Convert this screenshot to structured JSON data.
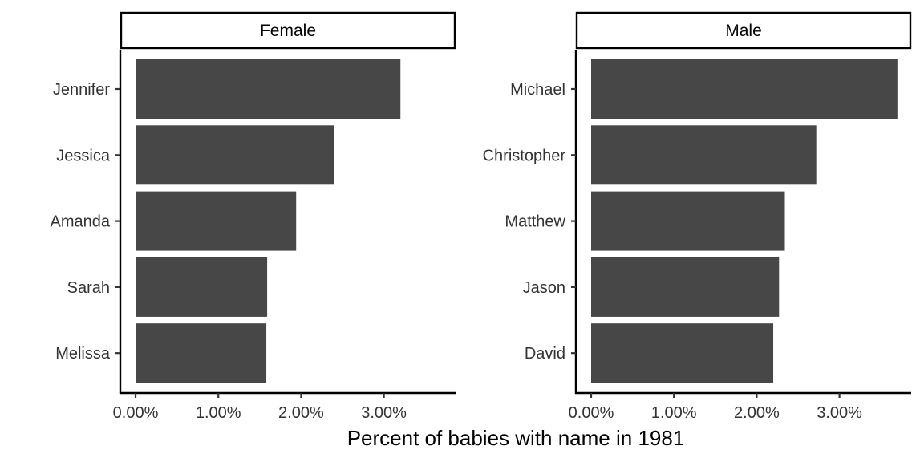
{
  "chart_data": {
    "type": "bar",
    "orientation": "horizontal",
    "xlabel": "Percent of babies with name in 1981",
    "ylabel": "",
    "xlim": [
      0,
      3.85
    ],
    "x_ticks": [
      0,
      1,
      2,
      3
    ],
    "x_tick_labels": [
      "0.00%",
      "1.00%",
      "2.00%",
      "3.00%"
    ],
    "grid": false,
    "bar_color": "#474747",
    "panels": [
      {
        "name": "Female",
        "categories": [
          "Jennifer",
          "Jessica",
          "Amanda",
          "Sarah",
          "Melissa"
        ],
        "values": [
          3.2,
          2.4,
          1.94,
          1.59,
          1.58
        ]
      },
      {
        "name": "Male",
        "categories": [
          "Michael",
          "Christopher",
          "Matthew",
          "Jason",
          "David"
        ],
        "values": [
          3.7,
          2.72,
          2.34,
          2.27,
          2.2
        ]
      }
    ]
  }
}
